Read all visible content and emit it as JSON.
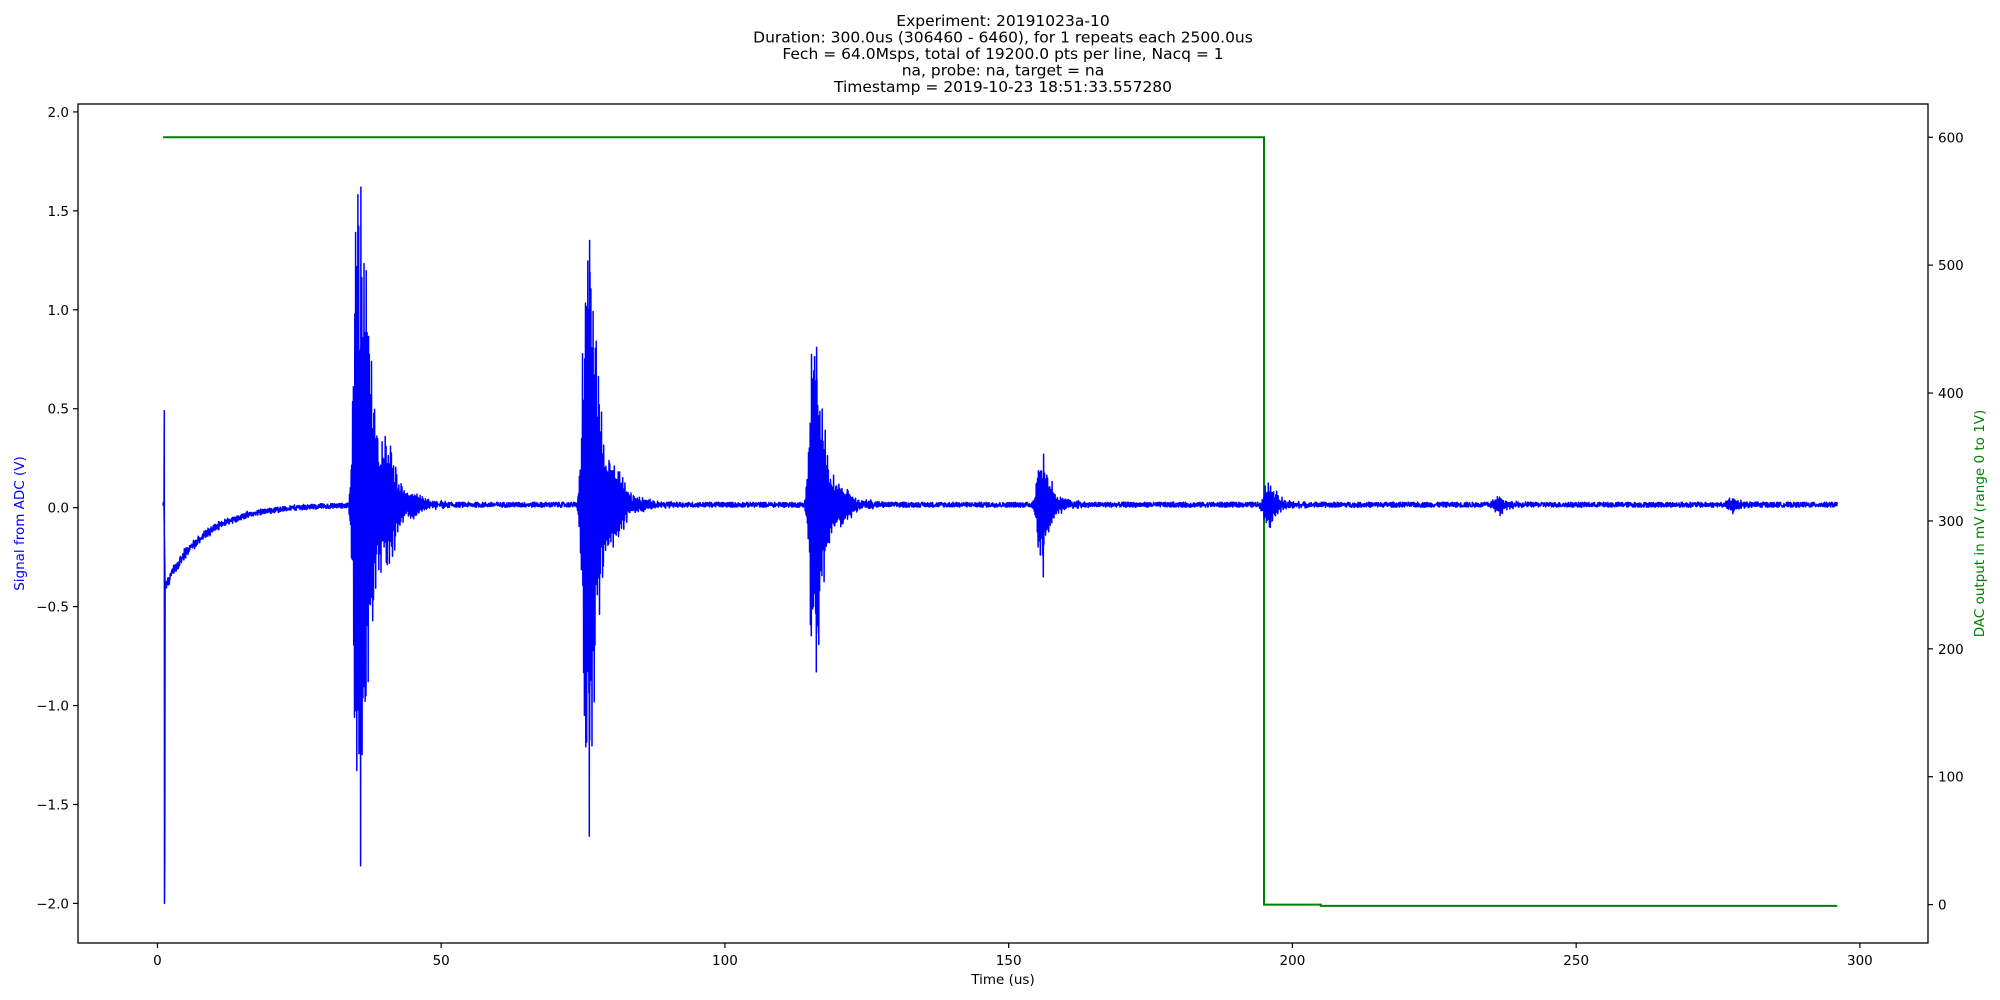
{
  "chart_data": {
    "type": "line",
    "title_lines": [
      "Experiment: 20191023a-10",
      "Duration: 300.0us (306460 - 6460), for 1 repeats each 2500.0us",
      "Fech = 64.0Msps, total of 19200.0 pts per line, Nacq = 1",
      "na, probe: na, target = na",
      "Timestamp = 2019-10-23 18:51:33.557280"
    ],
    "xlabel": "Time (us)",
    "ylabel": "Signal from ADC (V)",
    "y2label": "DAC output in mV (range 0 to 1V)",
    "xlim": [
      -14,
      312
    ],
    "ylim": [
      -2.2,
      2.04
    ],
    "y2lim": [
      -30,
      626
    ],
    "xticks": [
      0,
      50,
      100,
      150,
      200,
      250,
      300
    ],
    "yticks": [
      2.0,
      1.5,
      1.0,
      0.5,
      0.0,
      -0.5,
      -1.0,
      -1.5,
      -2.0
    ],
    "yticklabels": [
      "2.0",
      "1.5",
      "1.0",
      "0.5",
      "0.0",
      "−0.5",
      "−1.0",
      "−1.5",
      "−2.0"
    ],
    "y2ticks": [
      600,
      500,
      400,
      300,
      200,
      100,
      0
    ],
    "grid": false,
    "colors": {
      "signal": "#0000ff",
      "dac": "#008000",
      "axes": "#000000"
    },
    "dac_series": {
      "x": [
        1,
        195,
        195,
        205,
        205,
        296
      ],
      "y": [
        600,
        600,
        0,
        0,
        -1,
        -1
      ]
    },
    "signal_model": {
      "x_start": 1,
      "x_end": 296,
      "initial_spike": {
        "x": 1.2,
        "max": 0.49,
        "min": -2.0
      },
      "baseline": {
        "start": -0.42,
        "decay_us": 7.0,
        "offset": 0.015
      },
      "echoes": [
        {
          "t": 35.2,
          "amp": 1.8,
          "width": 3.0,
          "min": -1.81
        },
        {
          "t": 75.5,
          "amp": 1.5,
          "width": 2.6,
          "min": -1.66
        },
        {
          "t": 115.5,
          "amp": 0.9,
          "width": 2.4,
          "min": -0.83
        },
        {
          "t": 155.5,
          "amp": 0.3,
          "width": 2.0,
          "min": -0.35
        },
        {
          "t": 195.5,
          "amp": 0.12,
          "width": 2.0,
          "min": -0.1
        },
        {
          "t": 236.0,
          "amp": 0.05,
          "width": 2.0,
          "min": -0.04
        },
        {
          "t": 277.0,
          "amp": 0.035,
          "width": 2.0,
          "min": -0.03
        }
      ]
    }
  }
}
